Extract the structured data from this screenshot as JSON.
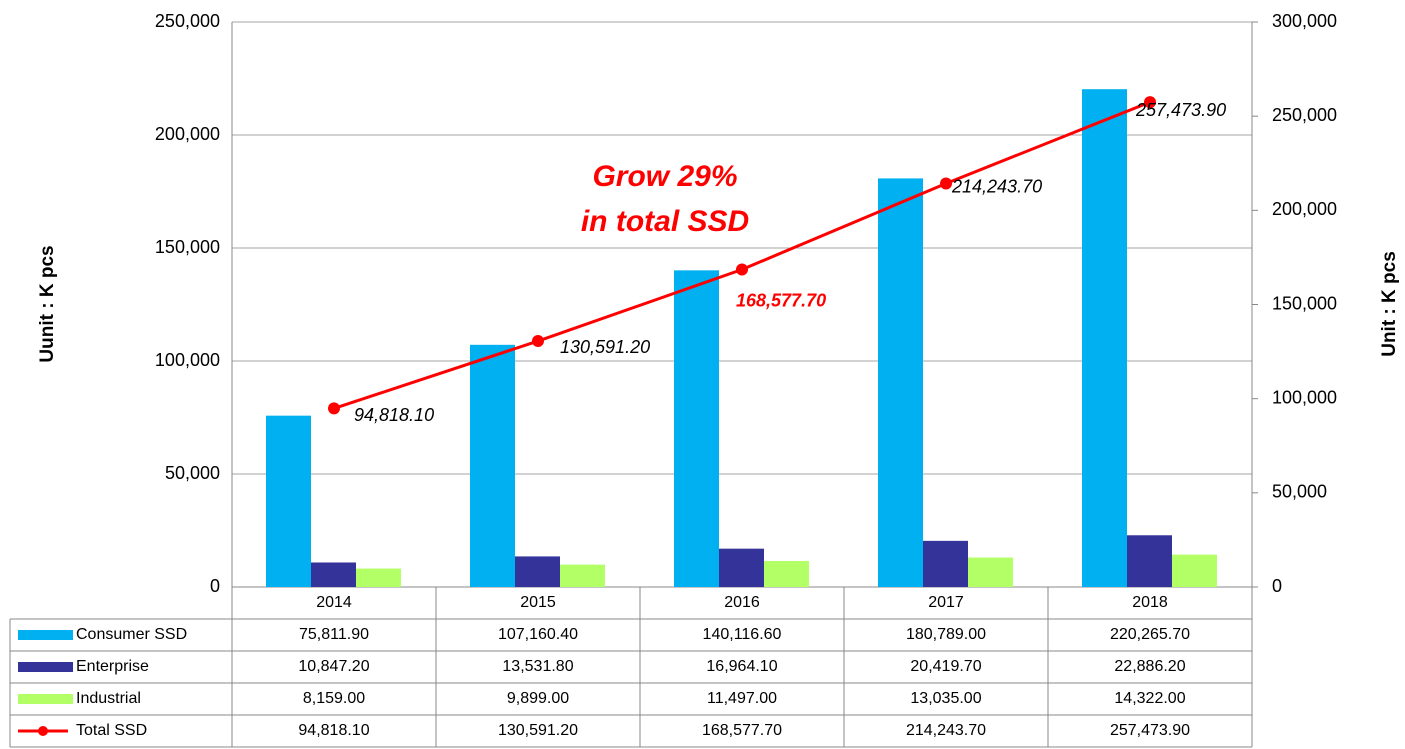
{
  "chart_data": {
    "type": "bar",
    "y_axis_label": "Uunit : K pcs",
    "y2_axis_label": "Unit : K pcs",
    "annotation": [
      "Grow 29%",
      "in total SSD"
    ],
    "categories": [
      "2014",
      "2015",
      "2016",
      "2017",
      "2018"
    ],
    "ylim": [
      0,
      250000
    ],
    "yticks": [
      0,
      {
        "value": 50000,
        "label": "50,000"
      },
      {
        "value": 100000,
        "label": "100,000"
      },
      {
        "value": 150000,
        "label": "150,000"
      },
      {
        "value": 200000,
        "label": "200,000"
      },
      {
        "value": 250000,
        "label": "250,000"
      }
    ],
    "y2lim": [
      0,
      300000
    ],
    "y2ticks": [
      0,
      {
        "value": 50000,
        "label": "50,000"
      },
      {
        "value": 100000,
        "label": "100,000"
      },
      {
        "value": 150000,
        "label": "150,000"
      },
      {
        "value": 200000,
        "label": "200,000"
      },
      {
        "value": 250000,
        "label": "250,000"
      },
      {
        "value": 300000,
        "label": "300,000"
      }
    ],
    "grid": true,
    "series": [
      {
        "name": "Consumer SSD",
        "type": "bar",
        "color": "#00b0f0",
        "values": [
          75811.9,
          107160.4,
          140116.6,
          180789.0,
          220265.7
        ],
        "value_labels": [
          "75,811.90",
          "107,160.40",
          "140,116.60",
          "180,789.00",
          "220,265.70"
        ]
      },
      {
        "name": "Enterprise",
        "type": "bar",
        "color": "#333399",
        "values": [
          10847.2,
          13531.8,
          16964.1,
          20419.7,
          22886.2
        ],
        "value_labels": [
          "10,847.20",
          "13,531.80",
          "16,964.10",
          "20,419.70",
          "22,886.20"
        ]
      },
      {
        "name": "Industrial",
        "type": "bar",
        "color": "#b3ff66",
        "values": [
          8159.0,
          9899.0,
          11497.0,
          13035.0,
          14322.0
        ],
        "value_labels": [
          "8,159.00",
          "9,899.00",
          "11,497.00",
          "13,035.00",
          "14,322.00"
        ]
      },
      {
        "name": "Total SSD",
        "type": "line",
        "axis": "y2",
        "color": "#ff0000",
        "values": [
          94818.1,
          130591.2,
          168577.7,
          214243.7,
          257473.9
        ],
        "value_labels": [
          "94,818.10",
          "130,591.20",
          "168,577.70",
          "214,243.70",
          "257,473.90"
        ]
      }
    ]
  }
}
